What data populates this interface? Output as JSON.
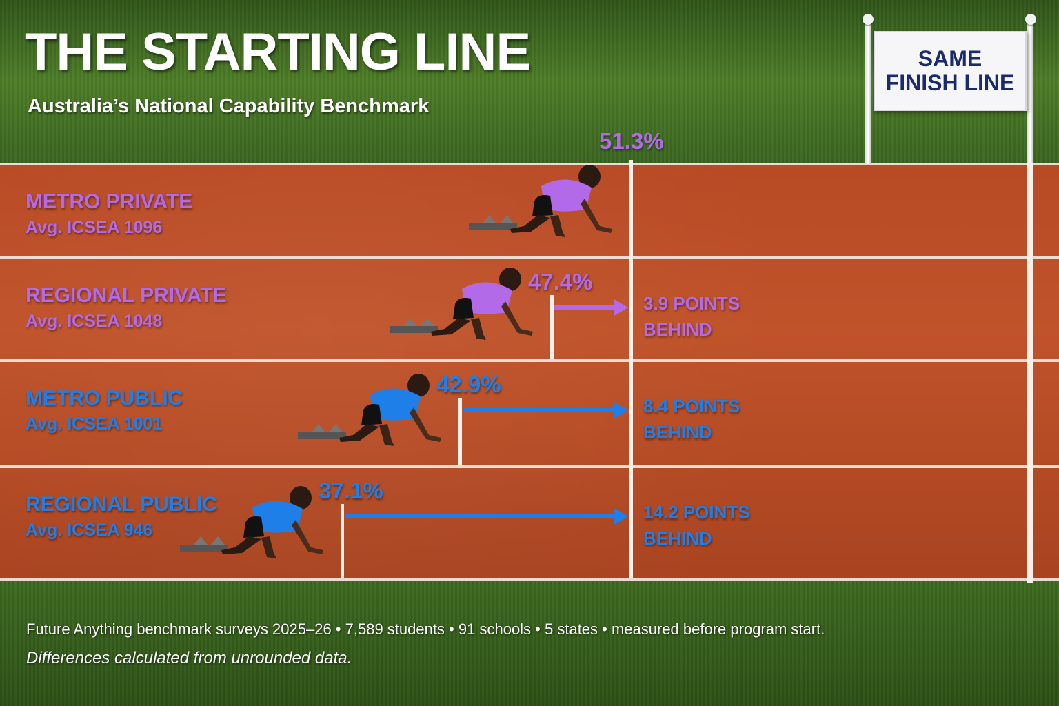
{
  "title": "THE STARTING LINE",
  "subtitle": "Australia’s National Capability Benchmark",
  "banner": {
    "line1": "SAME",
    "line2": "FINISH LINE"
  },
  "colors": {
    "private": "#b36ae8",
    "public": "#1f7fe8",
    "grass": "#3f6a22",
    "track": "#b84a24"
  },
  "chart_data": {
    "type": "bar",
    "orientation": "horizontal",
    "categories": [
      "METRO PRIVATE",
      "REGIONAL PRIVATE",
      "METRO PUBLIC",
      "REGIONAL PUBLIC"
    ],
    "values": [
      51.3,
      47.4,
      42.9,
      37.1
    ],
    "value_labels": [
      "51.3%",
      "47.4%",
      "42.9%",
      "37.1%"
    ],
    "icsea_labels": [
      "Avg. ICSEA 1096",
      "Avg. ICSEA 1048",
      "Avg. ICSEA 1001",
      "Avg. ICSEA 946"
    ],
    "gaps": [
      null,
      3.9,
      8.4,
      14.2
    ],
    "gap_labels": [
      "",
      "3.9 POINTS",
      "8.4 POINTS",
      "14.2 POINTS"
    ],
    "gap_suffix": "BEHIND",
    "benchmark": 51.3,
    "series_colors": [
      "#b36ae8",
      "#b36ae8",
      "#1f7fe8",
      "#1f7fe8"
    ]
  },
  "footer": {
    "source": "Future Anything benchmark surveys 2025–26  •  7,589 students  •  91 schools  •  5 states  •  measured before program start.",
    "note": "Differences calculated from unrounded data."
  }
}
